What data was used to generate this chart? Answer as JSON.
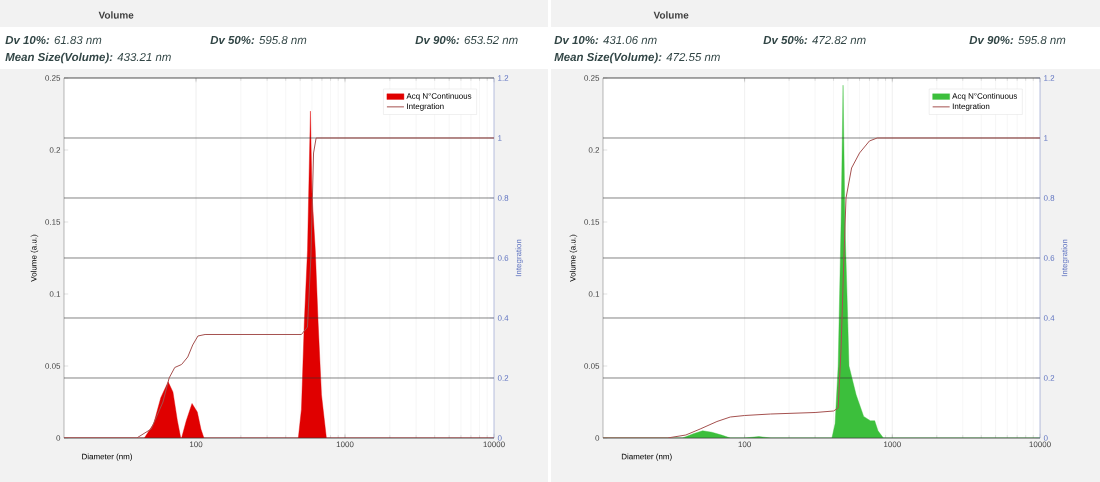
{
  "chart_data": [
    {
      "type": "area",
      "title": "Volume",
      "xlabel": "Diameter (nm)",
      "ylabel": "Volume (a.u.)",
      "y2label": "Integration",
      "log": "x",
      "xlim": [
        13,
        10000
      ],
      "xticks": [
        100,
        1000,
        10000
      ],
      "ylim": [
        0,
        0.25
      ],
      "yticks": [
        0,
        0.05,
        0.1,
        0.15,
        0.2,
        0.25
      ],
      "y2lim": [
        0,
        1.2
      ],
      "y2ticks": [
        0,
        0.2,
        0.4,
        0.6,
        0.8,
        1,
        1.2
      ],
      "grid": true,
      "legend": "top right",
      "annotations": [
        "**Dv 10%:** 61.83 nm",
        "**Dv 50%:** 595.8 nm",
        "**Dv 90%:** 653.52 nm",
        "**Mean Size(Volume):** 433.21 nm"
      ],
      "series": [
        {
          "name": "Acq N°Continuous",
          "color": "#e00000",
          "x": [
            13,
            45,
            52,
            58,
            65,
            70,
            75,
            79,
            80,
            86,
            94,
            102,
            108,
            113,
            486,
            510,
            533,
            560,
            586,
            600,
            632,
            660,
            695,
            750,
            10000
          ],
          "values": [
            0,
            0,
            0.01,
            0.028,
            0.039,
            0.032,
            0.012,
            0,
            0,
            0.012,
            0.024,
            0.018,
            0.006,
            0,
            0,
            0.02,
            0.08,
            0.13,
            0.227,
            0.17,
            0.13,
            0.08,
            0.03,
            0,
            0
          ]
        },
        {
          "name": "Integration",
          "type": "line",
          "axis": "y2",
          "color": "#a5514f",
          "x": [
            13,
            40,
            50,
            60,
            66,
            72,
            80,
            88,
            95,
            103,
            115,
            510,
            560,
            590,
            615,
            640,
            10000
          ],
          "values": [
            0,
            0,
            0.03,
            0.12,
            0.2,
            0.235,
            0.245,
            0.27,
            0.31,
            0.34,
            0.345,
            0.345,
            0.37,
            0.6,
            0.95,
            1,
            1
          ]
        }
      ]
    },
    {
      "type": "area",
      "title": "Volume",
      "xlabel": "Diameter (nm)",
      "ylabel": "Volume (a.u.)",
      "y2label": "Integration",
      "log": "x",
      "xlim": [
        11,
        10000
      ],
      "xticks": [
        100,
        1000,
        10000
      ],
      "ylim": [
        0,
        0.25
      ],
      "yticks": [
        0,
        0.05,
        0.1,
        0.15,
        0.2,
        0.25
      ],
      "y2lim": [
        0,
        1.2
      ],
      "y2ticks": [
        0,
        0.2,
        0.4,
        0.6,
        0.8,
        1,
        1.2
      ],
      "grid": true,
      "legend": "top right",
      "annotations": [
        "**Dv 10%:** 431.06 nm",
        "**Dv 50%:** 472.82 nm",
        "**Dv 90%:** 595.8 nm",
        "**Mean Size(Volume):** 472.55 nm"
      ],
      "series": [
        {
          "name": "Acq N°Continuous",
          "color": "#3cbf3c",
          "x": [
            11,
            38,
            45,
            52,
            60,
            70,
            80,
            100,
            125,
            150,
            390,
            410,
            430,
            450,
            464,
            478,
            509,
            569,
            640,
            710,
            760,
            800,
            870,
            10000
          ],
          "values": [
            0,
            0,
            0.003,
            0.005,
            0.004,
            0.002,
            0,
            0,
            0.001,
            0,
            0,
            0.01,
            0.05,
            0.15,
            0.245,
            0.15,
            0.05,
            0.03,
            0.015,
            0.012,
            0.012,
            0.005,
            0,
            0
          ]
        },
        {
          "name": "Integration",
          "type": "line",
          "axis": "y2",
          "color": "#a5514f",
          "x": [
            11,
            30,
            40,
            50,
            65,
            80,
            100,
            150,
            300,
            400,
            430,
            450,
            470,
            486,
            530,
            600,
            700,
            790,
            10000
          ],
          "values": [
            0,
            0,
            0.01,
            0.03,
            0.055,
            0.07,
            0.075,
            0.08,
            0.085,
            0.09,
            0.1,
            0.3,
            0.6,
            0.8,
            0.9,
            0.95,
            0.99,
            1,
            1
          ]
        }
      ]
    }
  ]
}
